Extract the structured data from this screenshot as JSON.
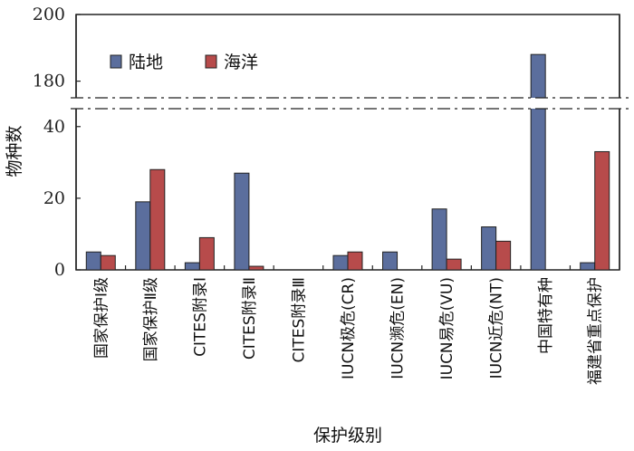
{
  "chart_data": {
    "type": "bar",
    "title": "",
    "xlabel": "保护级别",
    "ylabel": "物种数",
    "categories": [
      "国家保护Ⅰ级",
      "国家保护Ⅱ级",
      "CITES附录Ⅰ",
      "CITES附录Ⅱ",
      "CITES附录Ⅲ",
      "IUCN极危(CR)",
      "IUCN濒危(EN)",
      "IUCN易危(VU)",
      "IUCN近危(NT)",
      "中国特有种",
      "福建省重点保护"
    ],
    "series": [
      {
        "name": "陆地",
        "color": "#5b6e9d",
        "values": [
          5,
          19,
          2,
          27,
          0,
          4,
          5,
          17,
          12,
          188,
          2
        ]
      },
      {
        "name": "海洋",
        "color": "#b74b4b",
        "values": [
          4,
          28,
          9,
          1,
          0,
          5,
          0,
          3,
          8,
          0,
          33
        ]
      }
    ],
    "axis_break": [
      45,
      175
    ],
    "y_ticks_lower": [
      0,
      20,
      40
    ],
    "y_ticks_upper": [
      180,
      200
    ],
    "ylim": [
      0,
      200
    ],
    "legend_position": "top-left",
    "grid": false
  }
}
